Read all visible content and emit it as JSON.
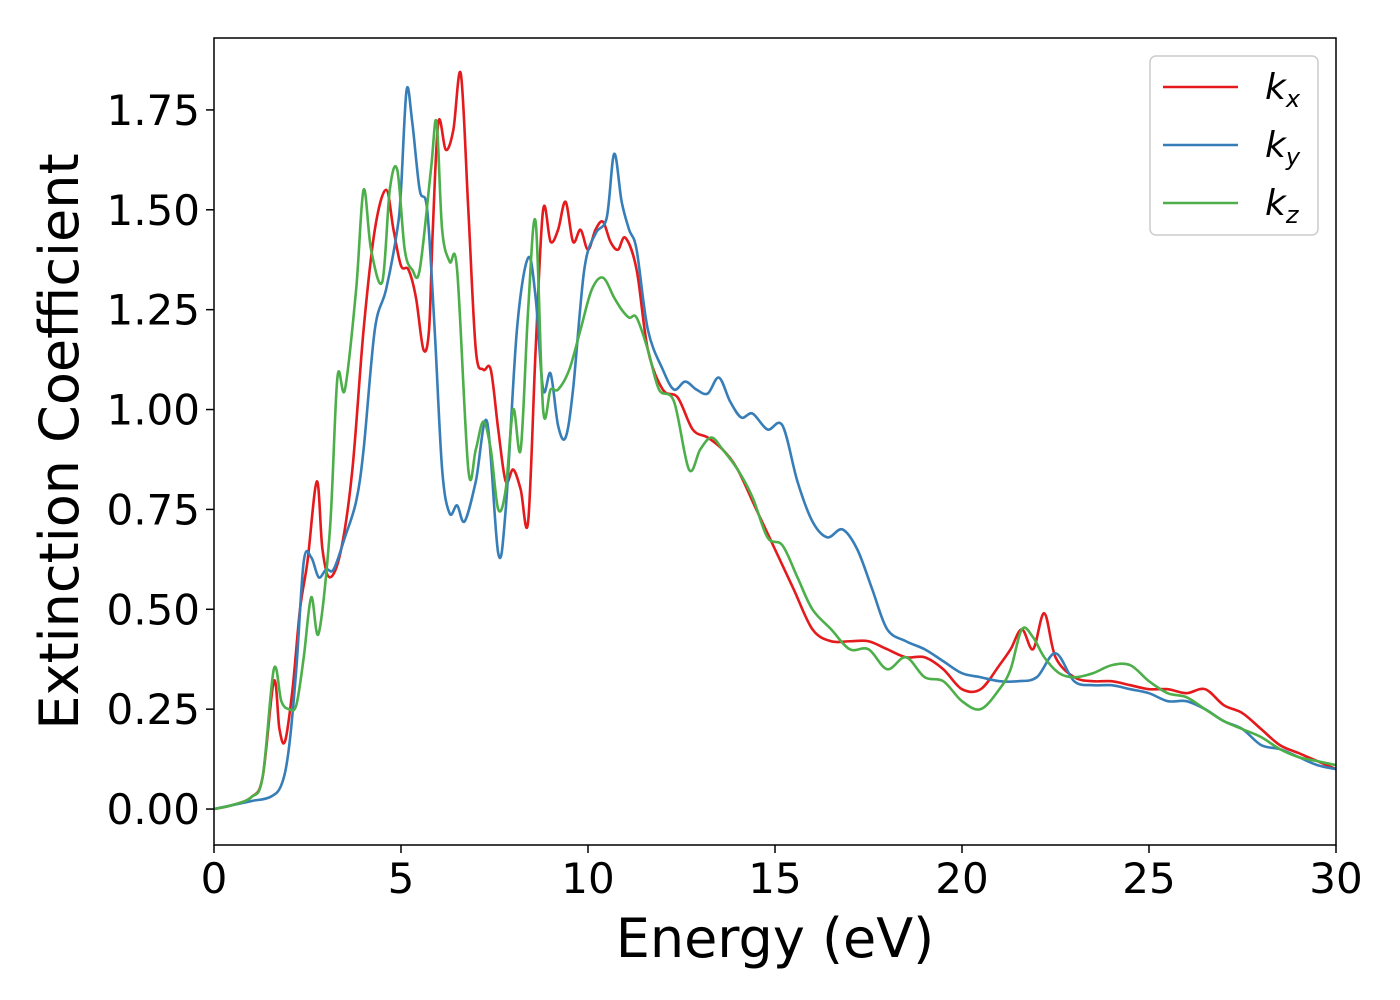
{
  "chart_data": {
    "type": "line",
    "xlabel": "Energy (eV)",
    "ylabel": "Extinction Coefficient",
    "xlim": [
      0,
      30
    ],
    "ylim": [
      -0.09,
      1.93
    ],
    "xticks": [
      0,
      5,
      10,
      15,
      20,
      25,
      30
    ],
    "xtick_labels": [
      "0",
      "5",
      "10",
      "15",
      "20",
      "25",
      "30"
    ],
    "yticks": [
      0,
      0.25,
      0.5,
      0.75,
      1.0,
      1.25,
      1.5,
      1.75
    ],
    "ytick_labels": [
      "0.00",
      "0.25",
      "0.50",
      "0.75",
      "1.00",
      "1.25",
      "1.50",
      "1.75"
    ],
    "grid": false,
    "legend_position": "top-right",
    "series": [
      {
        "name": "k_x",
        "legend_base": "k",
        "legend_sub": "x",
        "color": "#e41a1c",
        "x": [
          0,
          0.5,
          1.0,
          1.3,
          1.6,
          1.75,
          1.9,
          2.1,
          2.3,
          2.5,
          2.75,
          2.9,
          3.1,
          3.4,
          3.7,
          4.0,
          4.3,
          4.6,
          4.8,
          5.0,
          5.2,
          5.4,
          5.6,
          5.75,
          5.85,
          6.0,
          6.2,
          6.4,
          6.6,
          6.8,
          7.0,
          7.2,
          7.4,
          7.6,
          7.8,
          8.0,
          8.2,
          8.4,
          8.6,
          8.8,
          9.0,
          9.2,
          9.4,
          9.6,
          9.8,
          10.0,
          10.2,
          10.4,
          10.6,
          10.8,
          11.0,
          11.3,
          11.6,
          12.0,
          12.4,
          12.8,
          13.2,
          13.6,
          14.0,
          14.5,
          15.0,
          15.5,
          16.0,
          16.5,
          17.0,
          17.5,
          18.0,
          18.5,
          19.0,
          19.5,
          20.0,
          20.5,
          21.0,
          21.3,
          21.6,
          21.9,
          22.2,
          22.5,
          23.0,
          23.5,
          24.0,
          24.5,
          25.0,
          25.5,
          26.0,
          26.5,
          27.0,
          27.5,
          28.0,
          28.5,
          29.0,
          29.5,
          30.0
        ],
        "values": [
          0.0,
          0.01,
          0.03,
          0.08,
          0.32,
          0.2,
          0.17,
          0.3,
          0.5,
          0.62,
          0.82,
          0.65,
          0.58,
          0.65,
          0.85,
          1.2,
          1.45,
          1.55,
          1.45,
          1.36,
          1.35,
          1.28,
          1.15,
          1.2,
          1.45,
          1.72,
          1.65,
          1.7,
          1.84,
          1.5,
          1.15,
          1.1,
          1.1,
          0.95,
          0.82,
          0.85,
          0.8,
          0.72,
          1.15,
          1.5,
          1.42,
          1.45,
          1.52,
          1.42,
          1.45,
          1.4,
          1.45,
          1.47,
          1.42,
          1.4,
          1.43,
          1.35,
          1.15,
          1.05,
          1.03,
          0.95,
          0.93,
          0.9,
          0.85,
          0.75,
          0.65,
          0.55,
          0.45,
          0.42,
          0.42,
          0.42,
          0.4,
          0.38,
          0.38,
          0.35,
          0.3,
          0.3,
          0.36,
          0.4,
          0.45,
          0.4,
          0.49,
          0.38,
          0.33,
          0.32,
          0.32,
          0.31,
          0.3,
          0.3,
          0.29,
          0.3,
          0.26,
          0.24,
          0.2,
          0.16,
          0.14,
          0.12,
          0.1
        ]
      },
      {
        "name": "k_y",
        "legend_base": "k",
        "legend_sub": "y",
        "color": "#377eb8",
        "x": [
          0,
          0.5,
          1.0,
          1.5,
          1.8,
          2.0,
          2.2,
          2.4,
          2.6,
          2.8,
          3.0,
          3.2,
          3.5,
          3.8,
          4.0,
          4.3,
          4.6,
          4.9,
          5.0,
          5.15,
          5.3,
          5.5,
          5.7,
          5.9,
          6.1,
          6.3,
          6.5,
          6.7,
          7.0,
          7.3,
          7.6,
          7.8,
          8.1,
          8.4,
          8.6,
          8.8,
          9.0,
          9.2,
          9.4,
          9.6,
          9.9,
          10.2,
          10.5,
          10.7,
          10.9,
          11.1,
          11.3,
          11.6,
          12.0,
          12.3,
          12.6,
          12.9,
          13.2,
          13.5,
          13.8,
          14.1,
          14.4,
          14.8,
          15.2,
          15.6,
          16.0,
          16.4,
          16.8,
          17.2,
          17.6,
          18.0,
          18.5,
          19.0,
          19.5,
          20.0,
          20.5,
          21.0,
          21.5,
          22.0,
          22.5,
          23.0,
          23.5,
          24.0,
          24.5,
          25.0,
          25.5,
          26.0,
          26.5,
          27.0,
          27.5,
          28.0,
          28.5,
          29.0,
          29.5,
          30.0
        ],
        "values": [
          0.0,
          0.01,
          0.02,
          0.03,
          0.06,
          0.15,
          0.35,
          0.62,
          0.63,
          0.58,
          0.6,
          0.6,
          0.68,
          0.77,
          0.9,
          1.2,
          1.3,
          1.45,
          1.55,
          1.8,
          1.72,
          1.55,
          1.5,
          1.2,
          0.85,
          0.74,
          0.76,
          0.72,
          0.82,
          0.97,
          0.64,
          0.75,
          1.2,
          1.38,
          1.28,
          1.05,
          1.09,
          0.96,
          0.93,
          1.05,
          1.35,
          1.44,
          1.48,
          1.64,
          1.52,
          1.45,
          1.4,
          1.2,
          1.1,
          1.05,
          1.07,
          1.05,
          1.04,
          1.08,
          1.02,
          0.98,
          0.99,
          0.95,
          0.96,
          0.82,
          0.72,
          0.68,
          0.7,
          0.65,
          0.55,
          0.45,
          0.42,
          0.4,
          0.37,
          0.34,
          0.33,
          0.32,
          0.32,
          0.33,
          0.39,
          0.32,
          0.31,
          0.31,
          0.3,
          0.29,
          0.27,
          0.27,
          0.25,
          0.22,
          0.2,
          0.16,
          0.15,
          0.13,
          0.11,
          0.1
        ]
      },
      {
        "name": "k_z",
        "legend_base": "k",
        "legend_sub": "z",
        "color": "#4daf4a",
        "x": [
          0,
          0.5,
          1.0,
          1.3,
          1.6,
          1.8,
          2.0,
          2.2,
          2.4,
          2.6,
          2.8,
          3.1,
          3.3,
          3.5,
          3.8,
          4.0,
          4.2,
          4.5,
          4.7,
          4.9,
          5.1,
          5.3,
          5.5,
          5.8,
          5.95,
          6.1,
          6.3,
          6.5,
          6.8,
          7.0,
          7.2,
          7.4,
          7.6,
          7.8,
          8.0,
          8.2,
          8.4,
          8.6,
          8.8,
          9.0,
          9.2,
          9.5,
          9.8,
          10.1,
          10.4,
          10.7,
          10.9,
          11.1,
          11.3,
          11.6,
          11.9,
          12.3,
          12.7,
          13.0,
          13.3,
          13.6,
          14.0,
          14.4,
          14.8,
          15.2,
          15.6,
          16.0,
          16.5,
          17.0,
          17.5,
          18.0,
          18.5,
          19.0,
          19.5,
          20.0,
          20.5,
          21.0,
          21.3,
          21.6,
          21.9,
          22.2,
          22.6,
          23.0,
          23.5,
          24.0,
          24.5,
          25.0,
          25.5,
          26.0,
          26.5,
          27.0,
          27.5,
          28.0,
          28.5,
          29.0,
          29.5,
          30.0
        ],
        "values": [
          0.0,
          0.01,
          0.03,
          0.08,
          0.35,
          0.27,
          0.25,
          0.26,
          0.38,
          0.53,
          0.44,
          0.7,
          1.08,
          1.05,
          1.3,
          1.55,
          1.4,
          1.32,
          1.55,
          1.6,
          1.4,
          1.35,
          1.35,
          1.6,
          1.72,
          1.45,
          1.37,
          1.35,
          0.85,
          0.9,
          0.97,
          0.9,
          0.75,
          0.8,
          1.0,
          0.9,
          1.25,
          1.47,
          1.0,
          1.05,
          1.05,
          1.1,
          1.2,
          1.3,
          1.33,
          1.28,
          1.25,
          1.23,
          1.23,
          1.15,
          1.05,
          1.02,
          0.85,
          0.9,
          0.93,
          0.9,
          0.85,
          0.78,
          0.68,
          0.66,
          0.58,
          0.5,
          0.45,
          0.4,
          0.4,
          0.35,
          0.38,
          0.33,
          0.32,
          0.27,
          0.25,
          0.3,
          0.35,
          0.45,
          0.43,
          0.38,
          0.34,
          0.33,
          0.34,
          0.36,
          0.36,
          0.32,
          0.29,
          0.28,
          0.25,
          0.22,
          0.2,
          0.18,
          0.15,
          0.13,
          0.12,
          0.11
        ]
      }
    ]
  }
}
